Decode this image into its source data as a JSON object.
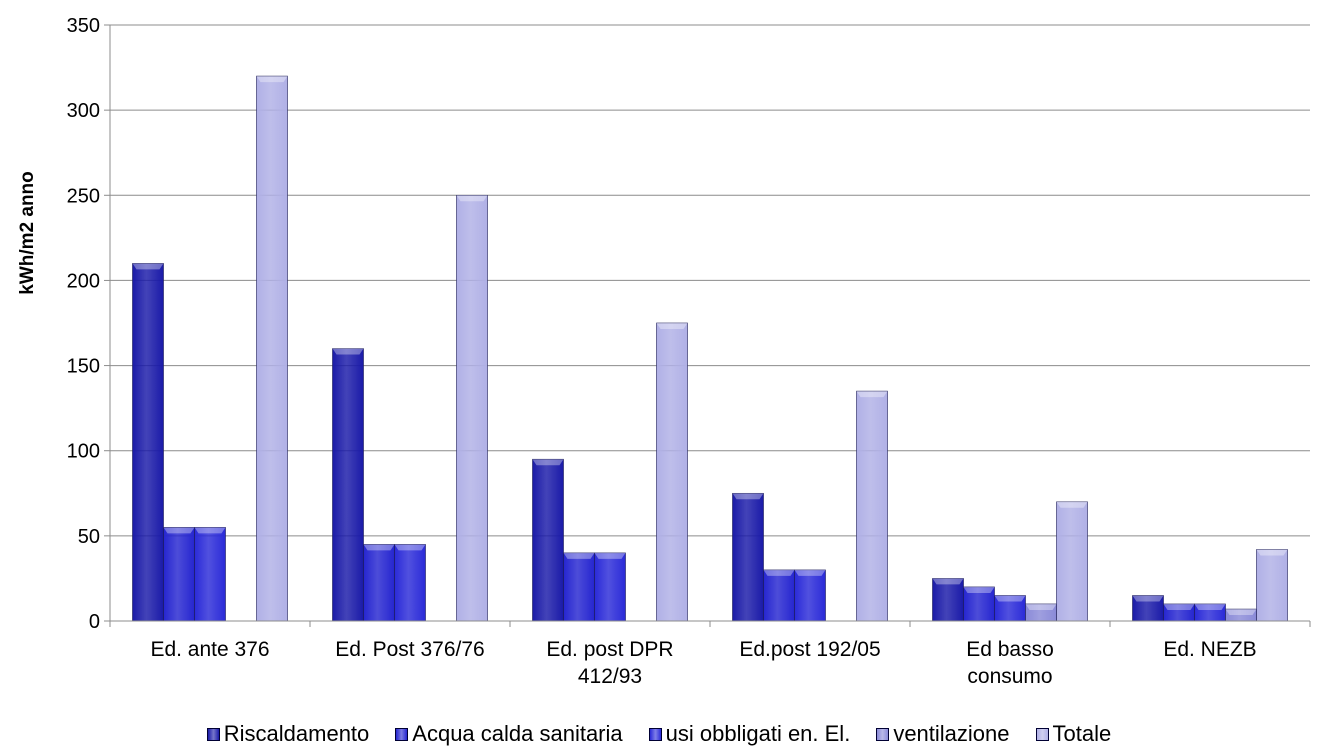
{
  "chart_data": {
    "type": "bar",
    "title": "",
    "xlabel": "",
    "ylabel": "kWh/m2 anno",
    "ylim": [
      0,
      350
    ],
    "yticks": [
      0,
      50,
      100,
      150,
      200,
      250,
      300,
      350
    ],
    "grid": true,
    "legend_position": "bottom",
    "categories": [
      [
        "Ed. ante 376"
      ],
      [
        "Ed. Post 376/76"
      ],
      [
        "Ed. post DPR",
        "412/93"
      ],
      [
        "Ed.post 192/05"
      ],
      [
        "Ed basso",
        "consumo"
      ],
      [
        "Ed. NEZB"
      ]
    ],
    "series": [
      {
        "name": "Riscaldamento",
        "values": [
          210,
          160,
          95,
          75,
          25,
          15
        ],
        "color": "#1a1aa8"
      },
      {
        "name": "Acqua calda sanitaria",
        "values": [
          55,
          45,
          40,
          30,
          20,
          10
        ],
        "color": "#2525d0"
      },
      {
        "name": "usi obbligati en. El.",
        "values": [
          55,
          45,
          40,
          30,
          15,
          10
        ],
        "color": "#2a2ad8"
      },
      {
        "name": "ventilazione",
        "values": [
          0,
          0,
          0,
          0,
          10,
          7
        ],
        "color": "#8a8ad8"
      },
      {
        "name": "Totale",
        "values": [
          320,
          250,
          175,
          135,
          70,
          42
        ],
        "color": "#b0b0e6"
      }
    ]
  }
}
